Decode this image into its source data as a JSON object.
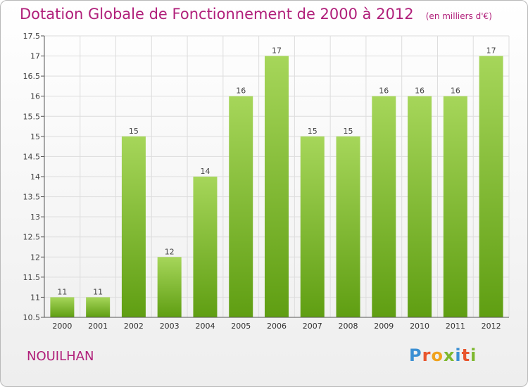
{
  "header": {
    "title": "Dotation Globale de Fonctionnement de 2000 à 2012",
    "unit": "(en milliers d'€)"
  },
  "commune": "NOUILHAN",
  "logo": {
    "text": "Proxiti",
    "letters": [
      "P",
      "r",
      "o",
      "x",
      "i",
      "t",
      "i"
    ],
    "colors": [
      "#3b8fd3",
      "#e8552d",
      "#f0a21d",
      "#7db82e",
      "#3b8fd3",
      "#e8552d",
      "#7db82e"
    ]
  },
  "colors": {
    "title": "#b01f7a",
    "bar_light": "#a6d65a",
    "bar_dark": "#5f9e12",
    "grid": "#dddddd"
  },
  "chart_data": {
    "type": "bar",
    "categories": [
      "2000",
      "2001",
      "2002",
      "2003",
      "2004",
      "2005",
      "2006",
      "2007",
      "2008",
      "2009",
      "2010",
      "2011",
      "2012"
    ],
    "values": [
      11,
      11,
      15,
      12,
      14,
      16,
      17,
      15,
      15,
      16,
      16,
      16,
      17
    ],
    "data_labels": [
      "11",
      "11",
      "15",
      "12",
      "14",
      "16",
      "17",
      "15",
      "15",
      "16",
      "16",
      "16",
      "17"
    ],
    "ylim": [
      10.5,
      17.5
    ],
    "yticks": [
      10.5,
      11,
      11.5,
      12,
      12.5,
      13,
      13.5,
      14,
      14.5,
      15,
      15.5,
      16,
      16.5,
      17,
      17.5
    ],
    "ytick_labels": [
      "10.5",
      "11",
      "11.5",
      "12",
      "12.5",
      "13",
      "13.5",
      "14",
      "14.5",
      "15",
      "15.5",
      "16",
      "16.5",
      "17",
      "17.5"
    ],
    "title": "Dotation Globale de Fonctionnement de 2000 à 2012",
    "xlabel": "",
    "ylabel": "",
    "grid": true
  }
}
